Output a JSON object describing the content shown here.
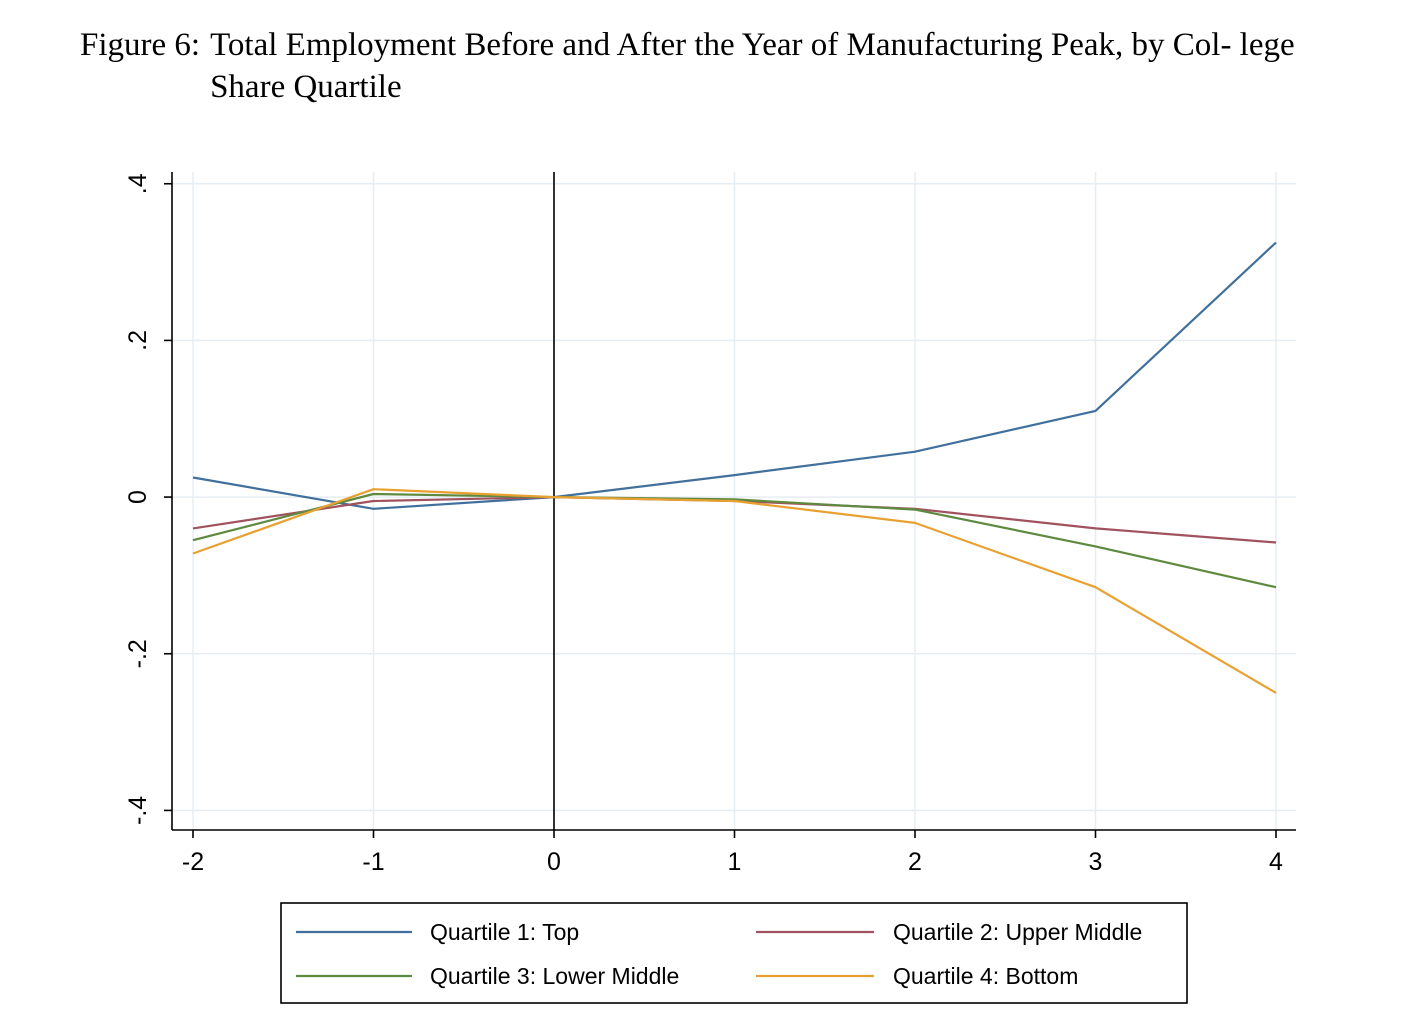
{
  "figure": {
    "label": "Figure 6:",
    "title": "Total Employment Before and After the Year of Manufacturing Peak, by Col- lege Share Quartile"
  },
  "chart_data": {
    "type": "line",
    "title": "Total Employment Before and After the Year of Manufacturing Peak, by College Share Quartile",
    "xlabel": "",
    "ylabel": "",
    "x": [
      -2,
      -1,
      0,
      1,
      2,
      3,
      4
    ],
    "x_tick_labels": [
      "-2",
      "-1",
      "0",
      "1",
      "2",
      "3",
      "4"
    ],
    "xlim": [
      -2,
      4
    ],
    "y_ticks": [
      -0.4,
      -0.2,
      0,
      0.2,
      0.4
    ],
    "y_tick_labels": [
      "-.4",
      "-.2",
      "0",
      ".2",
      ".4"
    ],
    "ylim": [
      -0.425,
      0.415
    ],
    "grid": true,
    "reference_line_x": 0,
    "legend_position": "bottom",
    "series": [
      {
        "name": "Quartile 1: Top",
        "color": "#41709C",
        "values": [
          0.025,
          -0.015,
          0.0,
          0.028,
          0.058,
          0.11,
          0.325
        ]
      },
      {
        "name": "Quartile 2: Upper Middle",
        "color": "#A0525E",
        "values": [
          -0.04,
          -0.005,
          0.0,
          -0.005,
          -0.015,
          -0.04,
          -0.058
        ]
      },
      {
        "name": "Quartile 3: Lower Middle",
        "color": "#5E8A40",
        "values": [
          -0.055,
          0.004,
          0.0,
          -0.003,
          -0.016,
          -0.063,
          -0.115
        ]
      },
      {
        "name": "Quartile 4: Bottom",
        "color": "#E8A030",
        "values": [
          -0.072,
          0.01,
          0.0,
          -0.005,
          -0.033,
          -0.115,
          -0.25
        ]
      }
    ]
  }
}
